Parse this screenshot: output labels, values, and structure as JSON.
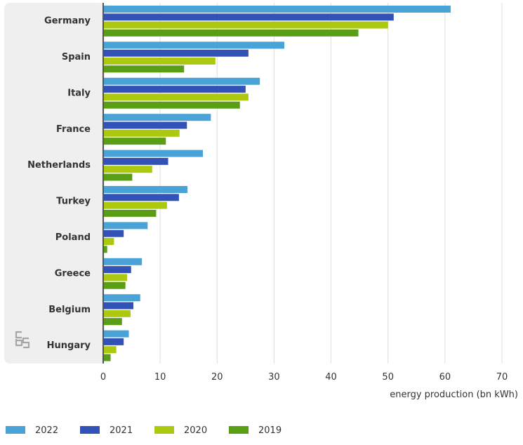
{
  "chart_data": {
    "type": "bar",
    "orientation": "horizontal",
    "title": "",
    "xlabel": "energy production (bn kWh)",
    "ylabel": "",
    "xlim": [
      0,
      70
    ],
    "xticks": [
      0,
      10,
      20,
      30,
      40,
      50,
      60,
      70
    ],
    "grid": true,
    "legend_position": "bottom-left",
    "categories": [
      "Germany",
      "Spain",
      "Italy",
      "France",
      "Netherlands",
      "Turkey",
      "Poland",
      "Greece",
      "Belgium",
      "Hungary"
    ],
    "series": [
      {
        "name": "2022",
        "color": "#4aa3d6",
        "values": [
          61,
          31.8,
          27.5,
          18.9,
          17.5,
          14.8,
          7.8,
          6.8,
          6.5,
          4.5
        ]
      },
      {
        "name": "2021",
        "color": "#3352b8",
        "values": [
          51,
          25.5,
          25,
          14.7,
          11.4,
          13.3,
          3.6,
          4.9,
          5.3,
          3.6
        ]
      },
      {
        "name": "2020",
        "color": "#acc80f",
        "values": [
          50,
          19.7,
          25.5,
          13.4,
          8.6,
          11.2,
          1.9,
          4.2,
          4.8,
          2.3
        ]
      },
      {
        "name": "2019",
        "color": "#5a9e16",
        "values": [
          44.8,
          14.2,
          24,
          11,
          5.1,
          9.3,
          0.7,
          3.9,
          3.3,
          1.3
        ]
      }
    ]
  },
  "branding": {
    "logo_name": "cbs-logo-icon",
    "logo_text": "cbs"
  }
}
